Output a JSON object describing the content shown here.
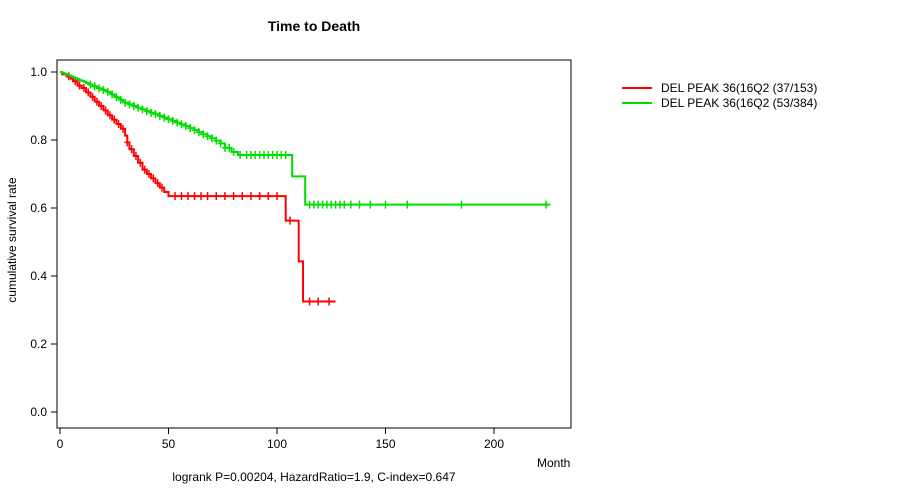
{
  "chart_data": {
    "type": "line",
    "subtype": "kaplan-meier-survival",
    "title": "Time to Death",
    "xlabel": "Month",
    "ylabel": "cumulative survival rate",
    "footnote": "logrank P=0.00204, HazardRatio=1.9, C-index=0.647",
    "xlim": [
      0,
      235
    ],
    "ylim": [
      0.0,
      1.0
    ],
    "grid": false,
    "legend_position": "outside-right-top",
    "xticks": {
      "values": [
        0,
        50,
        100,
        150,
        200
      ],
      "labels": [
        "0",
        "50",
        "100",
        "150",
        "200"
      ]
    },
    "yticks": {
      "values": [
        0.0,
        0.2,
        0.4,
        0.6,
        0.8,
        1.0
      ],
      "labels": [
        "0.0",
        "0.2",
        "0.4",
        "0.6",
        "0.8",
        "1.0"
      ]
    },
    "series": [
      {
        "id": "red",
        "name": "DEL PEAK 36(16Q2 (37/153)",
        "color": "#FF0000",
        "end_x": 127,
        "steps": [
          [
            0,
            1.0
          ],
          [
            1,
            0.993
          ],
          [
            3,
            0.987
          ],
          [
            5,
            0.98
          ],
          [
            6,
            0.973
          ],
          [
            8,
            0.96
          ],
          [
            10,
            0.953
          ],
          [
            12,
            0.94
          ],
          [
            14,
            0.927
          ],
          [
            16,
            0.913
          ],
          [
            18,
            0.9
          ],
          [
            20,
            0.887
          ],
          [
            22,
            0.873
          ],
          [
            24,
            0.86
          ],
          [
            26,
            0.847
          ],
          [
            28,
            0.833
          ],
          [
            30,
            0.813
          ],
          [
            31,
            0.793
          ],
          [
            32,
            0.773
          ],
          [
            34,
            0.753
          ],
          [
            36,
            0.733
          ],
          [
            38,
            0.713
          ],
          [
            40,
            0.7
          ],
          [
            42,
            0.687
          ],
          [
            44,
            0.673
          ],
          [
            46,
            0.66
          ],
          [
            48,
            0.647
          ],
          [
            50,
            0.635
          ],
          [
            104,
            0.563
          ],
          [
            110,
            0.443
          ],
          [
            112,
            0.325
          ]
        ],
        "censors": [
          4,
          7,
          9,
          11,
          13,
          15,
          17,
          19,
          21,
          23,
          25,
          27,
          29,
          31,
          33,
          35,
          37,
          39,
          41,
          43,
          45,
          47,
          53,
          56,
          59,
          62,
          65,
          68,
          72,
          76,
          80,
          84,
          88,
          92,
          96,
          100,
          106,
          115,
          119,
          124
        ]
      },
      {
        "id": "green",
        "name": "DEL PEAK 36(16Q2 (53/384)",
        "color": "#00DD00",
        "end_x": 226,
        "steps": [
          [
            0,
            1.0
          ],
          [
            1,
            0.997
          ],
          [
            2,
            0.995
          ],
          [
            3,
            0.992
          ],
          [
            4,
            0.99
          ],
          [
            5,
            0.987
          ],
          [
            6,
            0.984
          ],
          [
            7,
            0.982
          ],
          [
            8,
            0.979
          ],
          [
            9,
            0.976
          ],
          [
            10,
            0.974
          ],
          [
            11,
            0.971
          ],
          [
            12,
            0.968
          ],
          [
            13,
            0.966
          ],
          [
            14,
            0.963
          ],
          [
            15,
            0.96
          ],
          [
            16,
            0.958
          ],
          [
            17,
            0.955
          ],
          [
            18,
            0.952
          ],
          [
            19,
            0.95
          ],
          [
            20,
            0.947
          ],
          [
            21,
            0.944
          ],
          [
            22,
            0.942
          ],
          [
            23,
            0.939
          ],
          [
            24,
            0.934
          ],
          [
            25,
            0.929
          ],
          [
            26,
            0.926
          ],
          [
            27,
            0.923
          ],
          [
            28,
            0.918
          ],
          [
            29,
            0.913
          ],
          [
            30,
            0.91
          ],
          [
            32,
            0.905
          ],
          [
            34,
            0.9
          ],
          [
            36,
            0.895
          ],
          [
            38,
            0.89
          ],
          [
            40,
            0.885
          ],
          [
            42,
            0.88
          ],
          [
            44,
            0.876
          ],
          [
            46,
            0.871
          ],
          [
            48,
            0.866
          ],
          [
            50,
            0.861
          ],
          [
            52,
            0.856
          ],
          [
            54,
            0.851
          ],
          [
            56,
            0.846
          ],
          [
            58,
            0.841
          ],
          [
            60,
            0.835
          ],
          [
            62,
            0.829
          ],
          [
            64,
            0.823
          ],
          [
            66,
            0.817
          ],
          [
            68,
            0.811
          ],
          [
            70,
            0.805
          ],
          [
            72,
            0.798
          ],
          [
            74,
            0.79
          ],
          [
            76,
            0.777
          ],
          [
            79,
            0.765
          ],
          [
            82,
            0.756
          ],
          [
            107,
            0.693
          ],
          [
            113,
            0.61
          ]
        ],
        "censors": [
          14,
          16,
          18,
          20,
          22,
          24,
          26,
          28,
          30,
          32,
          34,
          36,
          38,
          40,
          42,
          44,
          46,
          48,
          50,
          52,
          54,
          56,
          58,
          60,
          62,
          64,
          66,
          68,
          70,
          72,
          74,
          76,
          78,
          80,
          83,
          86,
          88,
          90,
          92,
          94,
          96,
          98,
          100,
          102,
          104,
          115,
          117,
          119,
          121,
          123,
          125,
          127,
          129,
          131,
          134,
          138,
          143,
          150,
          160,
          185,
          224
        ]
      }
    ]
  }
}
